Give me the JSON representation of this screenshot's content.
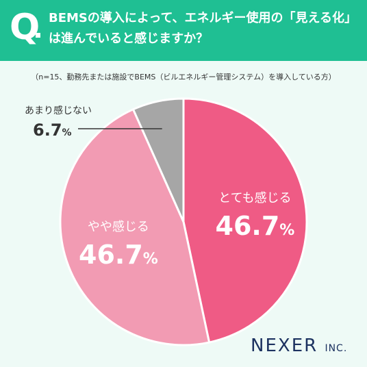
{
  "header": {
    "q_letter": "Q",
    "question": "BEMSの導入によって、エネルギー使用の「見える化」\nは進んでいると感じますか？"
  },
  "note": "（n=15、勤務先または施設でBEMS（ビルエネルギー管理システム）を導入している方）",
  "chart_data": {
    "type": "pie",
    "slices": [
      {
        "label": "とても感じる",
        "value": 46.7,
        "color": "#ef5b85"
      },
      {
        "label": "やや感じる",
        "value": 46.7,
        "color": "#f29bb3"
      },
      {
        "label": "あまり感じない",
        "value": 6.7,
        "color": "#a6a6a6"
      }
    ],
    "unit": "%",
    "start": "top",
    "direction": "clockwise"
  },
  "logo": {
    "name": "NEXER",
    "suffix": "INC."
  }
}
